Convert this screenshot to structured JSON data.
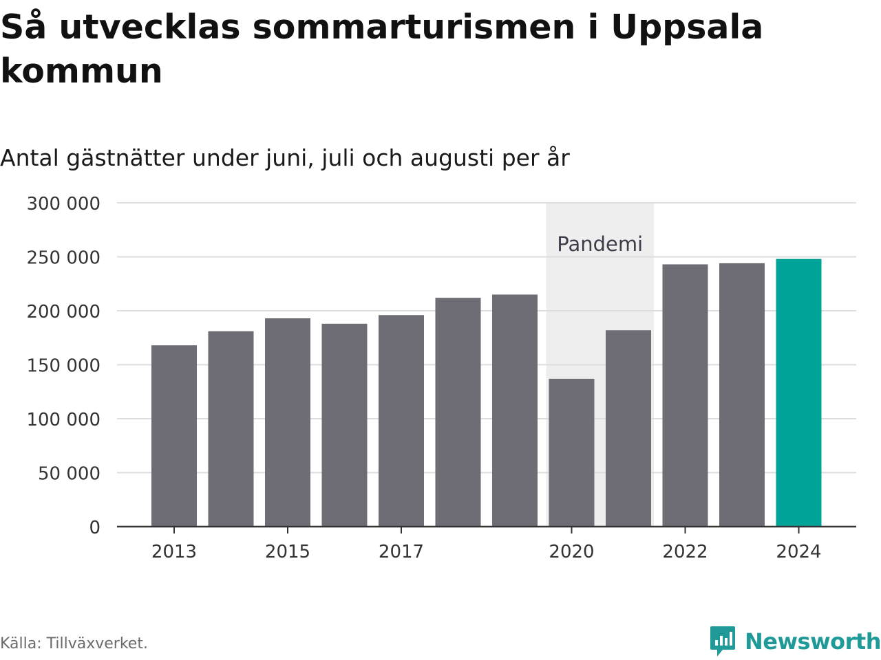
{
  "title": "Så utvecklas sommarturismen i Uppsala kommun",
  "subtitle": "Antal gästnätter under juni, juli och augusti per år",
  "source": "Källa: Tillväxverket.",
  "brand": "Newsworthy",
  "colors": {
    "bar": "#6e6d75",
    "highlight": "#00a398",
    "band": "#eeeeee",
    "grid": "#dddddd",
    "axis": "#333333",
    "brand": "#1f9a98"
  },
  "chart_data": {
    "type": "bar",
    "categories": [
      2013,
      2014,
      2015,
      2016,
      2017,
      2018,
      2019,
      2020,
      2021,
      2022,
      2023,
      2024
    ],
    "values": [
      168000,
      181000,
      193000,
      188000,
      196000,
      212000,
      215000,
      137000,
      182000,
      243000,
      244000,
      248000
    ],
    "highlight_category": 2024,
    "ylim": [
      0,
      300000
    ],
    "yticks": [
      0,
      50000,
      100000,
      150000,
      200000,
      250000,
      300000
    ],
    "ytick_labels": [
      "0",
      "50 000",
      "100 000",
      "150 000",
      "200 000",
      "250 000",
      "300 000"
    ],
    "xtick_labels": [
      "2013",
      "2015",
      "2017",
      "2020",
      "2022",
      "2024"
    ],
    "annotation": {
      "label": "Pandemi",
      "from": 2020,
      "to": 2021
    },
    "grid": true,
    "xlabel": "",
    "ylabel": ""
  }
}
